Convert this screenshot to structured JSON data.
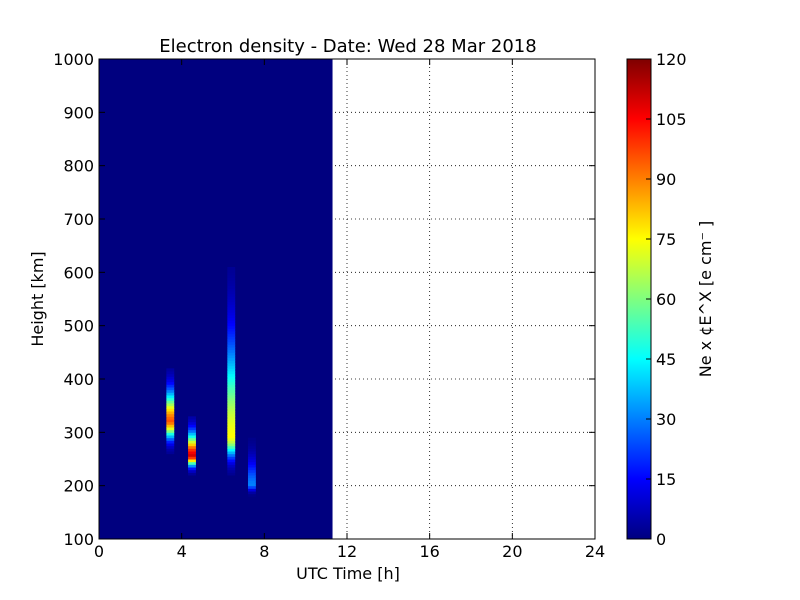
{
  "chart_data": {
    "type": "heatmap",
    "title": "Electron density - Date: Wed 28 Mar 2018",
    "xlabel": "UTC Time [h]",
    "ylabel": "Height [km]",
    "xlim": [
      0,
      24
    ],
    "ylim": [
      100,
      1000
    ],
    "x_ticks": [
      0,
      4,
      8,
      12,
      16,
      20,
      24
    ],
    "y_ticks": [
      100,
      200,
      300,
      400,
      500,
      600,
      700,
      800,
      900,
      1000
    ],
    "grid": true,
    "data_end_hour": 11.3,
    "colorbar": {
      "label": "Ne x ¢E^X  [e cm⁻ ]",
      "colormap": "jet",
      "range": [
        0,
        120
      ],
      "ticks": [
        0,
        15,
        30,
        45,
        60,
        75,
        90,
        105,
        120
      ]
    },
    "background_color": "#00007f",
    "features": [
      {
        "time_h": 3.45,
        "height_min_km": 260,
        "height_max_km": 420,
        "peak_height_km": 320,
        "peak_value": 95
      },
      {
        "time_h": 4.5,
        "height_min_km": 220,
        "height_max_km": 330,
        "peak_height_km": 255,
        "peak_value": 110
      },
      {
        "time_h": 6.4,
        "height_min_km": 220,
        "height_max_km": 610,
        "peak_height_km": 290,
        "peak_value": 75
      },
      {
        "time_h": 7.4,
        "height_min_km": 180,
        "height_max_km": 290,
        "peak_height_km": 200,
        "peak_value": 30
      }
    ]
  }
}
